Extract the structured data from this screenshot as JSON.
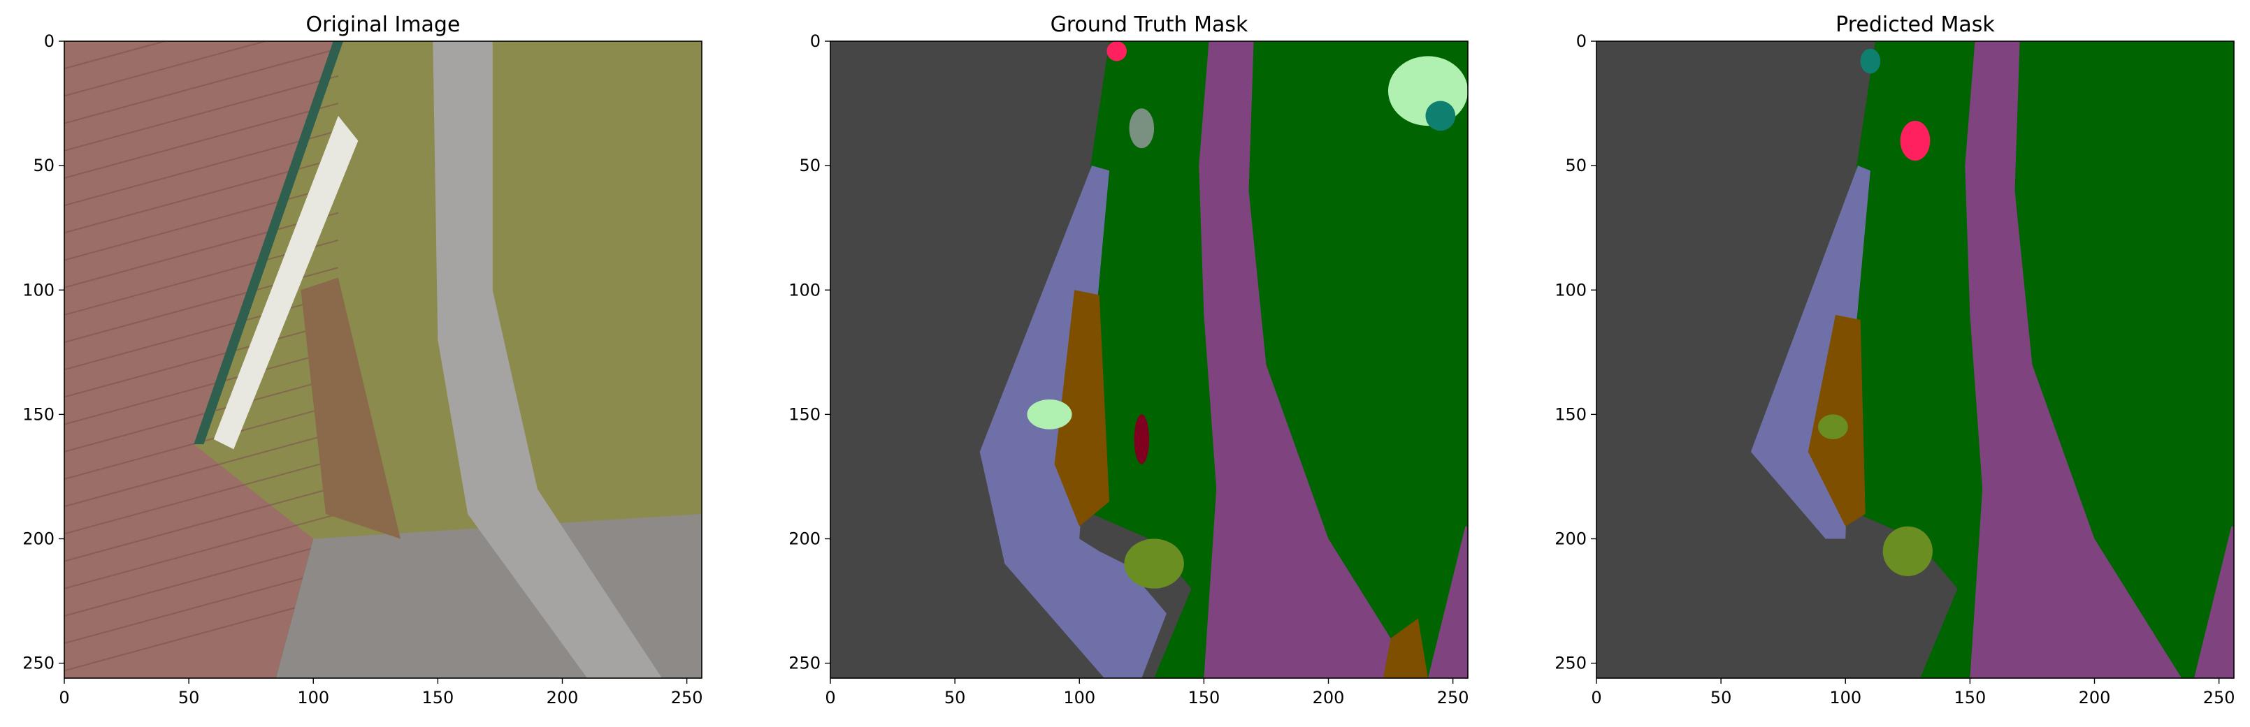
{
  "figure": {
    "panels": [
      {
        "id": "original",
        "title": "Original Image"
      },
      {
        "id": "gt",
        "title": "Ground Truth Mask"
      },
      {
        "id": "pred",
        "title": "Predicted Mask"
      }
    ]
  },
  "axes": {
    "x_ticks": [
      0,
      50,
      100,
      150,
      200,
      250
    ],
    "y_ticks": [
      0,
      50,
      100,
      150,
      200,
      250
    ],
    "x_range": [
      0,
      256
    ],
    "y_range": [
      0,
      256
    ]
  },
  "colors": {
    "roof": "#9b6e67",
    "lawn": "#8b8b4d",
    "path": "#a6a4a2",
    "pavement": "#8d8a87",
    "mask_dark_gray": "#464646",
    "mask_green": "#006400",
    "mask_purple": "#7f437f",
    "mask_slate_blue": "#7070a8",
    "mask_brown": "#7f4f00",
    "mask_olive": "#6b8e23",
    "mask_teal": "#0f8070",
    "mask_light_green": "#b0f0b0",
    "mask_crimson": "#800020",
    "mask_pink": "#ff2060",
    "mask_gray_green": "#7a9080"
  }
}
